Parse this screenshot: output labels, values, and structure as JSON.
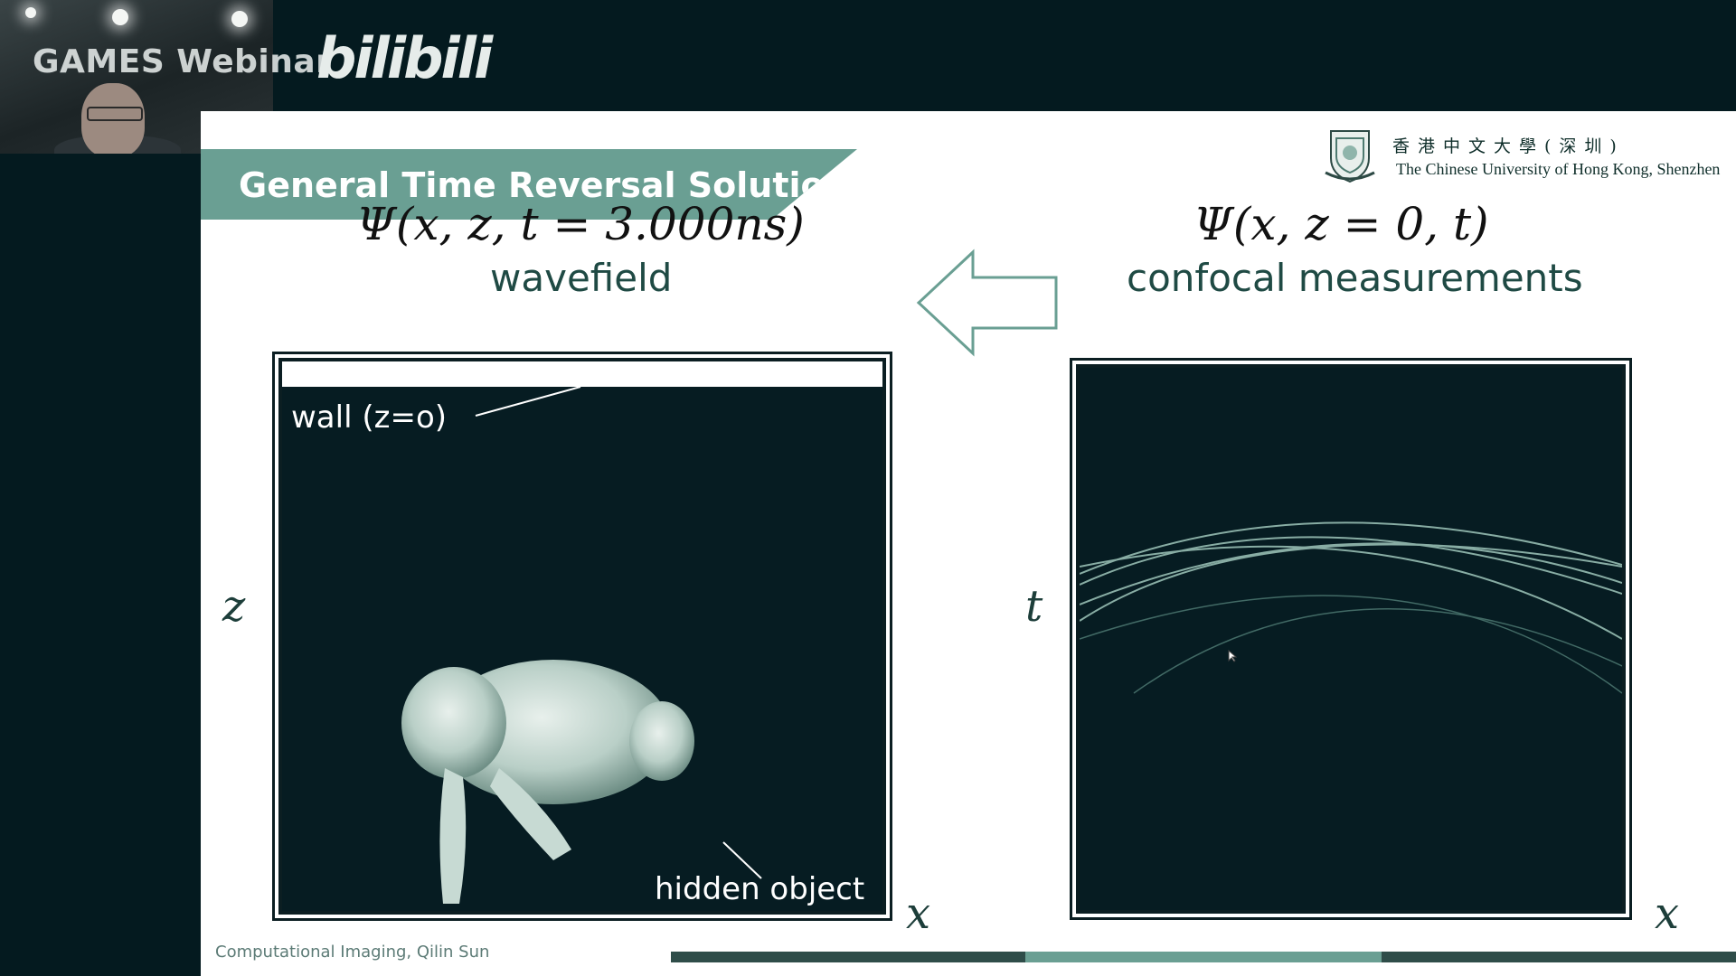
{
  "overlay": {
    "watermark_text": "GAMES Webinar",
    "brand_logo_text": "bilibili"
  },
  "slide": {
    "title": "General Time Reversal Solution",
    "institution": {
      "name_cn": "香港中文大學(深圳)",
      "name_en": "The Chinese University of Hong Kong, Shenzhen"
    },
    "left": {
      "equation": "Ψ(x, z, t = 3.000ns)",
      "label": "wavefield",
      "axis_vertical": "z",
      "axis_horizontal": "x",
      "annotation_wall": "wall (z=o)",
      "annotation_object": "hidden object"
    },
    "right": {
      "equation": "Ψ(x, z = 0, t)",
      "label": "confocal measurements",
      "axis_vertical": "t",
      "axis_horizontal": "x"
    },
    "footer": "Computational Imaging, Qilin Sun"
  },
  "colors": {
    "accent_teal": "#6a9f93",
    "dark_panel": "#061c22",
    "background_dark": "#041a1f",
    "progress_dark": "#2f4d49",
    "progress_light": "#6a9f93"
  }
}
